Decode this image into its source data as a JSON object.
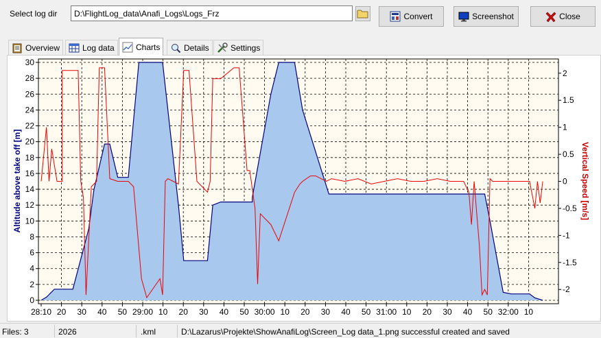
{
  "toolbar": {
    "dir_label": "Select log dir",
    "dir_value": "D:\\FlightLog_data\\Anafi_Logs\\Logs_Frz",
    "convert_label": "Convert",
    "screenshot_label": "Screenshot",
    "close_label": "Close"
  },
  "tabs": [
    {
      "label": "Overview",
      "icon": "clipboard-icon"
    },
    {
      "label": "Log data",
      "icon": "table-icon"
    },
    {
      "label": "Charts",
      "icon": "chart-icon",
      "active": true
    },
    {
      "label": "Details",
      "icon": "magnifier-icon"
    },
    {
      "label": "Settings",
      "icon": "tools-icon"
    }
  ],
  "chart_data": {
    "type": "area",
    "ylabel": "Altitude above take off [m]",
    "y2label": "Vertical Speed [m/s]",
    "ylim": [
      0,
      30
    ],
    "y2lim": [
      -2.2,
      2.2
    ],
    "y_ticks": [
      "0",
      "2",
      "4",
      "6",
      "8",
      "10",
      "12",
      "14",
      "16",
      "18",
      "20",
      "22",
      "24",
      "26",
      "28",
      "30"
    ],
    "y2_ticks": [
      "-2",
      "-1.5",
      "-1",
      "-0.5",
      "0",
      "0.5",
      "1",
      "1.5",
      "2"
    ],
    "x_ticks": [
      "28:10",
      "20",
      "30",
      "40",
      "50",
      "29:00",
      "10",
      "20",
      "30",
      "40",
      "50",
      "30:00",
      "10",
      "20",
      "30",
      "40",
      "50",
      "31:00",
      "10",
      "20",
      "30",
      "40",
      "50",
      "32:00",
      "10"
    ],
    "grid": true,
    "series": [
      {
        "name": "Altitude above take off [m]",
        "color": "#000080",
        "fill": "#a8c8ee",
        "x": [
          0,
          2,
          5,
          12,
          18,
          20,
          24,
          26,
          29,
          33,
          37,
          46,
          52,
          54,
          59,
          63,
          65,
          68,
          75,
          80,
          80,
          87,
          90,
          96,
          99,
          107,
          109,
          114,
          119,
          121,
          123,
          127,
          129,
          136,
          164,
          168,
          170,
          175,
          178,
          183,
          185,
          187,
          190
        ],
        "y": [
          0,
          0.4,
          1.4,
          1.4,
          9,
          14,
          19.7,
          19.7,
          15.5,
          15.5,
          30,
          30,
          12,
          5,
          5,
          5,
          12,
          12.4,
          12.4,
          12.4,
          13,
          26,
          30,
          30,
          24,
          15.5,
          13.4,
          13.4,
          13.4,
          13.4,
          13.4,
          13.4,
          13.4,
          13.4,
          13.4,
          13.4,
          10,
          1,
          0.8,
          0.8,
          0.8,
          0.3,
          0
        ]
      },
      {
        "name": "Vertical Speed [m/s]",
        "color": "#ee0000",
        "axis": "right",
        "x": [
          0,
          2,
          3,
          4,
          6,
          8,
          8,
          9,
          14,
          15,
          16,
          17,
          19,
          21,
          22,
          23,
          24,
          26,
          29,
          33,
          35,
          38,
          40,
          45,
          46,
          47,
          48,
          50,
          52,
          54,
          56,
          59,
          61,
          63,
          64,
          65,
          68,
          73,
          75,
          78,
          79,
          81,
          82,
          83,
          87,
          90,
          96,
          98,
          99,
          102,
          104,
          106,
          108,
          110,
          115,
          120,
          125,
          130,
          135,
          140,
          145,
          150,
          155,
          160,
          162,
          163,
          164,
          165,
          166,
          167,
          168,
          169,
          170,
          171,
          172,
          173,
          175,
          178,
          180,
          185,
          187,
          188,
          189,
          190
        ],
        "y": [
          0,
          1.0,
          0,
          0.6,
          0,
          0,
          2.05,
          2.05,
          2.05,
          0,
          -0.3,
          -2.1,
          -0.1,
          0,
          2.1,
          2.1,
          2.1,
          0.05,
          0,
          0,
          -0.1,
          -1.8,
          -2.15,
          -1.8,
          -2.1,
          0,
          0.05,
          0,
          -0.05,
          2.05,
          2.05,
          0,
          -0.1,
          -0.2,
          0,
          1.9,
          1.9,
          2.1,
          2.1,
          0.2,
          0.2,
          -0.5,
          -1.9,
          -0.6,
          -0.8,
          -1.1,
          -0.2,
          -0.05,
          0,
          0.1,
          0.1,
          0.05,
          0,
          0.05,
          0,
          0.05,
          -0.05,
          0,
          0.05,
          0,
          0,
          0.05,
          0,
          0,
          -0.2,
          -0.8,
          0,
          -0.6,
          -1.2,
          -2.1,
          -2.0,
          -2.1,
          0.05,
          0,
          0,
          0,
          0,
          0,
          0,
          0,
          -0.5,
          0,
          -0.4,
          0
        ]
      }
    ]
  },
  "status": {
    "files": "Files: 3",
    "year": "2026",
    "ext": ".kml",
    "message": "D:\\Lazarus\\Projekte\\ShowAnafiLog\\Screen_Log data_1.png successful created and saved"
  }
}
